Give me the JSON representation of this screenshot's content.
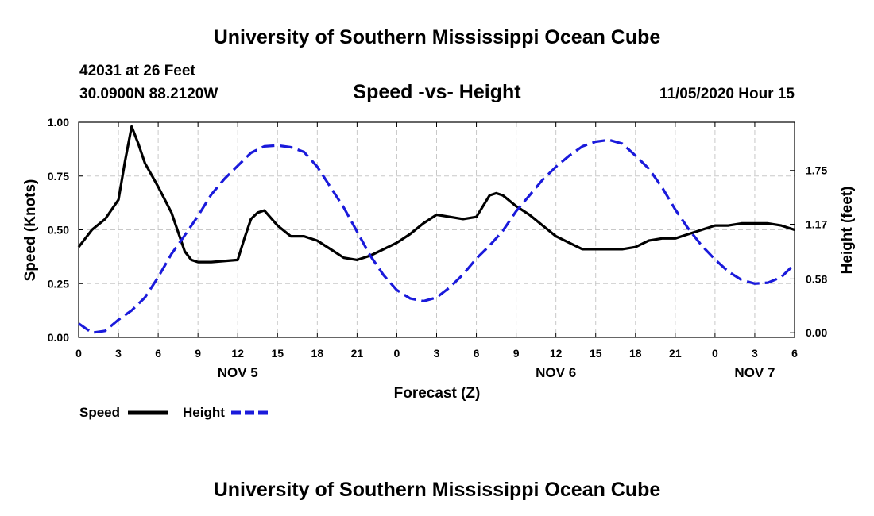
{
  "header": {
    "title": "University of Southern Mississippi Ocean Cube",
    "station": "42031 at 26 Feet",
    "location": "30.0900N 88.2120W",
    "datetime": "11/05/2020 Hour 15",
    "footer_title": "University of Southern Mississippi Ocean Cube"
  },
  "colors": {
    "speed": "#000000",
    "height": "#1a1adb",
    "grid": "#c8c8c8"
  },
  "chart_data": {
    "type": "line",
    "title": "Speed -vs- Height",
    "xlabel": "Forecast (Z)",
    "ylabel": "Speed (Knots)",
    "y2label": "Height (feet)",
    "xlim": [
      0,
      54
    ],
    "ylim": [
      0,
      1.0
    ],
    "y2lim": [
      -0.05,
      2.27
    ],
    "x_ticks": [
      0,
      3,
      6,
      9,
      12,
      15,
      18,
      21,
      24,
      27,
      30,
      33,
      36,
      39,
      42,
      45,
      48,
      51,
      54
    ],
    "x_tick_labels": [
      "0",
      "3",
      "6",
      "9",
      "12",
      "15",
      "18",
      "21",
      "0",
      "3",
      "6",
      "9",
      "12",
      "15",
      "18",
      "21",
      "0",
      "3",
      "6"
    ],
    "y_ticks": [
      0,
      0.25,
      0.5,
      0.75,
      1.0
    ],
    "y_tick_labels": [
      "0.00",
      "0.25",
      "0.50",
      "0.75",
      "1.00"
    ],
    "y2_ticks": [
      0,
      0.58,
      1.17,
      1.75
    ],
    "y2_tick_labels": [
      "0.00",
      "0.58",
      "1.17",
      "1.75"
    ],
    "date_labels": [
      {
        "x": 12,
        "label": "NOV 5"
      },
      {
        "x": 36,
        "label": "NOV 6"
      },
      {
        "x": 51,
        "label": "NOV 7"
      }
    ],
    "grid": true,
    "legend": [
      "Speed",
      "Height"
    ],
    "series": [
      {
        "name": "Speed",
        "axis": "left",
        "style": "solid",
        "x": [
          0,
          1,
          2,
          3,
          3.5,
          4,
          4.5,
          5,
          6,
          7,
          8,
          8.5,
          9,
          10,
          12,
          12.5,
          13,
          13.5,
          14,
          15,
          16,
          17,
          18,
          19,
          20,
          21,
          22,
          23,
          24,
          25,
          26,
          27,
          28,
          29,
          30,
          31,
          31.5,
          32,
          33,
          34,
          35,
          36,
          37,
          38,
          39,
          40,
          41,
          42,
          43,
          44,
          45,
          46,
          47,
          48,
          49,
          50,
          51,
          52,
          53,
          54
        ],
        "values": [
          0.42,
          0.5,
          0.55,
          0.64,
          0.82,
          0.98,
          0.9,
          0.81,
          0.7,
          0.58,
          0.4,
          0.36,
          0.35,
          0.35,
          0.36,
          0.46,
          0.55,
          0.58,
          0.59,
          0.52,
          0.47,
          0.47,
          0.45,
          0.41,
          0.37,
          0.36,
          0.38,
          0.41,
          0.44,
          0.48,
          0.53,
          0.57,
          0.56,
          0.55,
          0.56,
          0.66,
          0.67,
          0.66,
          0.61,
          0.57,
          0.52,
          0.47,
          0.44,
          0.41,
          0.41,
          0.41,
          0.41,
          0.42,
          0.45,
          0.46,
          0.46,
          0.48,
          0.5,
          0.52,
          0.52,
          0.53,
          0.53,
          0.53,
          0.52,
          0.5
        ]
      },
      {
        "name": "Height",
        "axis": "right",
        "style": "dashed",
        "x": [
          0,
          1,
          2,
          3,
          4,
          5,
          6,
          7,
          8,
          9,
          10,
          11,
          12,
          13,
          14,
          15,
          16,
          17,
          18,
          19,
          20,
          21,
          22,
          23,
          24,
          25,
          26,
          27,
          28,
          29,
          30,
          31,
          32,
          33,
          34,
          35,
          36,
          37,
          38,
          39,
          40,
          41,
          42,
          43,
          44,
          45,
          46,
          47,
          48,
          49,
          50,
          51,
          52,
          53,
          54
        ],
        "values": [
          0.1,
          0.0,
          0.02,
          0.14,
          0.24,
          0.38,
          0.6,
          0.85,
          1.05,
          1.26,
          1.49,
          1.66,
          1.8,
          1.94,
          2.01,
          2.02,
          2.0,
          1.95,
          1.79,
          1.57,
          1.35,
          1.09,
          0.83,
          0.62,
          0.46,
          0.37,
          0.34,
          0.38,
          0.49,
          0.63,
          0.8,
          0.94,
          1.1,
          1.31,
          1.48,
          1.65,
          1.79,
          1.91,
          2.01,
          2.06,
          2.08,
          2.04,
          1.91,
          1.77,
          1.57,
          1.33,
          1.12,
          0.94,
          0.79,
          0.66,
          0.57,
          0.53,
          0.54,
          0.6,
          0.74
        ]
      }
    ]
  }
}
